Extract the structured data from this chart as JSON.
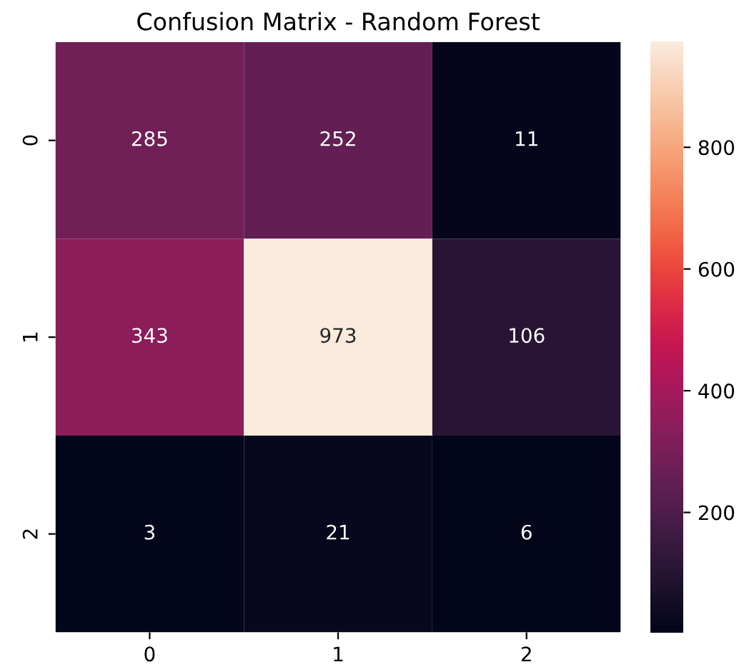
{
  "chart_data": {
    "type": "heatmap",
    "title": "Confusion Matrix - Random Forest",
    "categories": [
      "0",
      "1",
      "2"
    ],
    "y_categories": [
      "0",
      "1",
      "2"
    ],
    "cells": [
      [
        285,
        252,
        11
      ],
      [
        343,
        973,
        106
      ],
      [
        3,
        21,
        6
      ]
    ],
    "data_labels": true,
    "clim": [
      3,
      973
    ],
    "cticks": [
      200,
      400,
      600,
      800
    ]
  }
}
